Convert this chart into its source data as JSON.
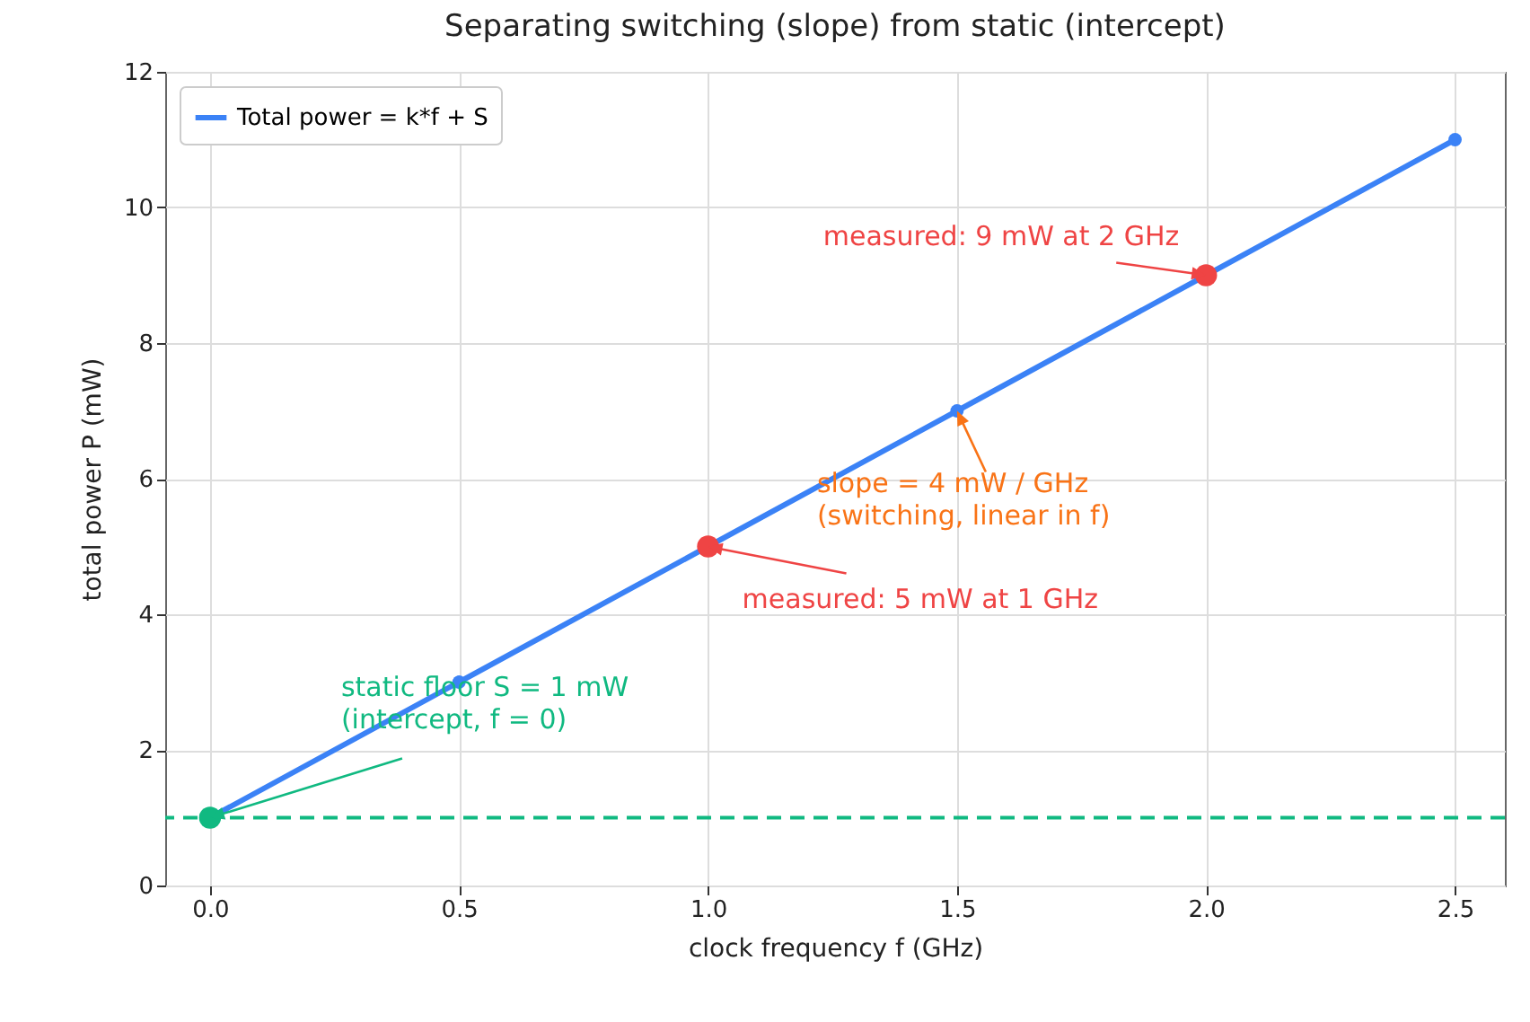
{
  "chart_data": {
    "type": "line",
    "title": "Separating switching (slope) from static (intercept)",
    "xlabel": "clock frequency  f  (GHz)",
    "ylabel": "total power  P  (mW)",
    "xlim": [
      -0.09,
      2.6
    ],
    "ylim": [
      0,
      12
    ],
    "xticks": [
      {
        "value": 0,
        "label": "0.0"
      },
      {
        "value": 0.5,
        "label": "0.5"
      },
      {
        "value": 1,
        "label": "1.0"
      },
      {
        "value": 1.5,
        "label": "1.5"
      },
      {
        "value": 2,
        "label": "2.0"
      },
      {
        "value": 2.5,
        "label": "2.5"
      }
    ],
    "yticks": [
      0,
      2,
      4,
      6,
      8,
      10,
      12
    ],
    "grid": true,
    "legend": "top left",
    "marker": "circle",
    "line_style": "solid",
    "series": [
      {
        "name": "Total power = k*f + S",
        "color": "#3b82f6",
        "x": [
          0,
          0.5,
          1,
          1.5,
          2,
          2.5
        ],
        "values": [
          1,
          3,
          5,
          7,
          9,
          11
        ]
      },
      {
        "type": "scatter",
        "color": "#ef4444",
        "x": [
          1,
          2
        ],
        "values": [
          5,
          9
        ]
      },
      {
        "type": "scatter",
        "color": "#10b981",
        "x": [
          0
        ],
        "values": [
          1
        ]
      }
    ],
    "ref_lines": [
      {
        "axis": "y",
        "value": 1,
        "color": "#10b981",
        "line_style": "dashed"
      }
    ],
    "annotations": [
      {
        "text": "measured: 9 mW at 2 GHz",
        "x": 2,
        "y": 9
      },
      {
        "text": "slope = 4 mW / GHz\n(switching, linear in f)",
        "x": 1.5,
        "y": 7
      },
      {
        "text": "measured: 5 mW at 1 GHz",
        "x": 1,
        "y": 5
      },
      {
        "text": "static floor S = 1 mW\n(intercept, f = 0)",
        "x": 0,
        "y": 1
      }
    ]
  }
}
